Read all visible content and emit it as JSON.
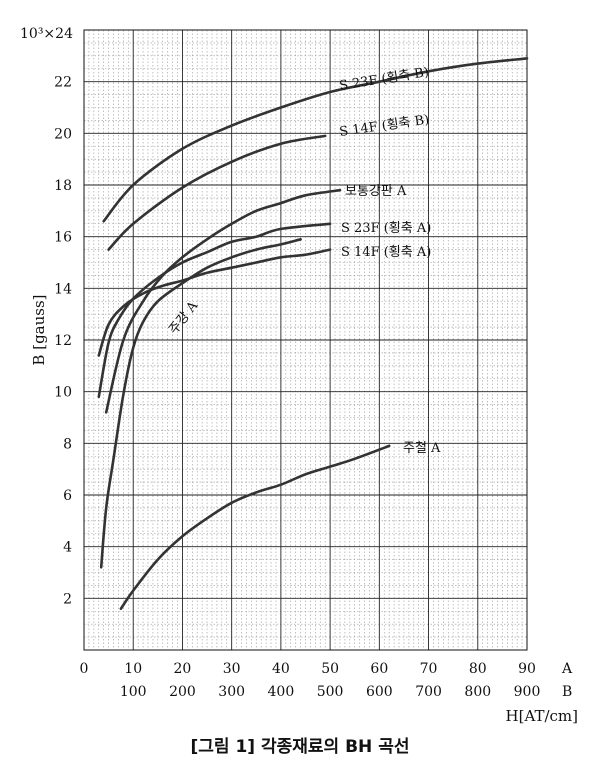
{
  "caption": "[그림 1] 각종재료의 BH 곡선",
  "chart_data": {
    "type": "line",
    "title": "",
    "ylabel": "B [gauss]",
    "y_multiplier": "10³×24",
    "xlabel": "H[AT/cm]",
    "scale_a_marker": "A",
    "scale_b_marker": "B",
    "xlim_A": [
      0,
      90
    ],
    "xlim_B": [
      0,
      900
    ],
    "ylim": [
      0,
      24
    ],
    "y_ticks": [
      2,
      4,
      6,
      8,
      10,
      12,
      14,
      16,
      18,
      20,
      22
    ],
    "x_ticks_A": [
      0,
      10,
      20,
      30,
      40,
      50,
      60,
      70,
      80,
      90
    ],
    "x_ticks_B": [
      100,
      200,
      300,
      400,
      500,
      600,
      700,
      800,
      900
    ],
    "grid": true,
    "series": [
      {
        "name": "S 23F (횡축 B)",
        "scale": "B",
        "color": "#333333",
        "x": [
          40,
          100,
          200,
          300,
          400,
          500,
          600,
          700,
          800,
          900
        ],
        "y": [
          16.6,
          18.0,
          19.4,
          20.3,
          21.0,
          21.6,
          22.0,
          22.4,
          22.7,
          22.9
        ]
      },
      {
        "name": "S 14F (횡축 B)",
        "scale": "B",
        "color": "#333333",
        "x": [
          50,
          100,
          200,
          300,
          400,
          490
        ],
        "y": [
          15.5,
          16.5,
          17.9,
          18.9,
          19.6,
          19.9
        ]
      },
      {
        "name": "보통강판 A",
        "scale": "A",
        "color": "#333333",
        "x": [
          4.5,
          8,
          12,
          16,
          20,
          25,
          30,
          35,
          40,
          45,
          52
        ],
        "y": [
          9.2,
          12.0,
          13.5,
          14.5,
          15.2,
          15.9,
          16.5,
          17.0,
          17.3,
          17.6,
          17.8
        ]
      },
      {
        "name": "S 23F (횡축 A)",
        "scale": "A",
        "color": "#333333",
        "x": [
          3,
          5,
          7,
          10,
          15,
          20,
          25,
          30,
          35,
          40,
          50
        ],
        "y": [
          9.8,
          11.9,
          12.8,
          13.6,
          14.4,
          15.0,
          15.4,
          15.8,
          16.0,
          16.3,
          16.5
        ]
      },
      {
        "name": "S 14F (횡축 A)",
        "scale": "A",
        "color": "#333333",
        "x": [
          3,
          5,
          8,
          12,
          16,
          20,
          25,
          30,
          35,
          40,
          45,
          50
        ],
        "y": [
          11.4,
          12.6,
          13.3,
          13.8,
          14.1,
          14.3,
          14.6,
          14.8,
          15.0,
          15.2,
          15.3,
          15.5
        ]
      },
      {
        "name": "주강 A",
        "scale": "A",
        "color": "#333333",
        "x": [
          3.5,
          4.5,
          6,
          8,
          10,
          12,
          15,
          20,
          25,
          30,
          35,
          40,
          44
        ],
        "y": [
          3.2,
          5.5,
          7.4,
          9.9,
          11.7,
          12.7,
          13.5,
          14.2,
          14.8,
          15.2,
          15.5,
          15.7,
          15.9
        ]
      },
      {
        "name": "주철 A",
        "scale": "A",
        "color": "#333333",
        "x": [
          7.5,
          10,
          15,
          20,
          25,
          30,
          35,
          40,
          45,
          50,
          55,
          62
        ],
        "y": [
          1.6,
          2.3,
          3.5,
          4.4,
          5.1,
          5.7,
          6.1,
          6.4,
          6.8,
          7.1,
          7.4,
          7.9
        ]
      }
    ]
  }
}
